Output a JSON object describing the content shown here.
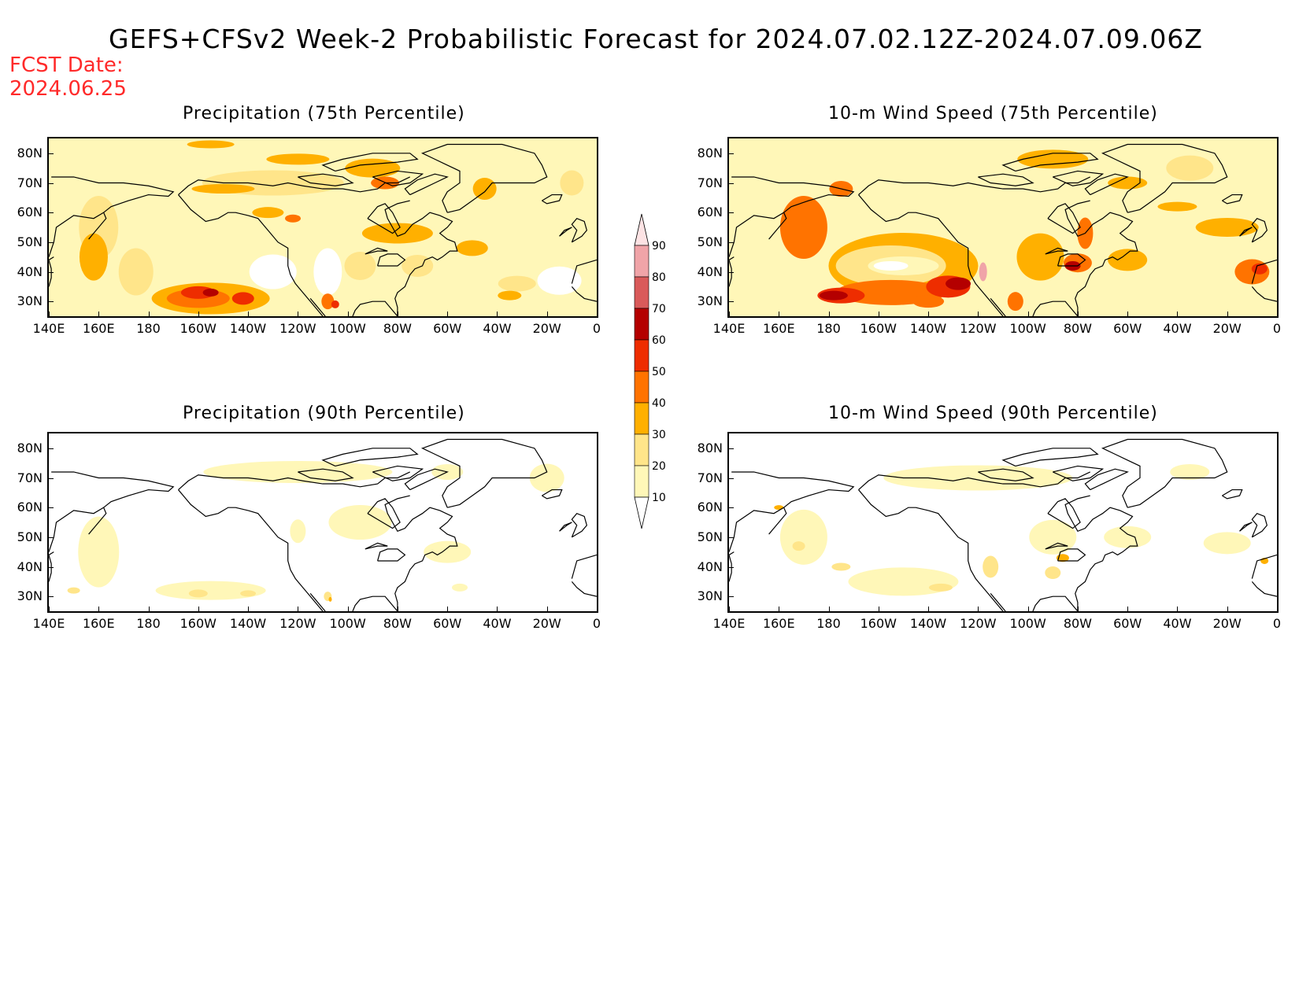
{
  "header": {
    "title": "GEFS+CFSv2 Week-2 Probabilistic Forecast for 2024.07.02.12Z-2024.07.09.06Z",
    "fcst_label": "FCST Date:",
    "fcst_date": "2024.06.25"
  },
  "axes": {
    "lat_labels": [
      "80N",
      "70N",
      "60N",
      "50N",
      "40N",
      "30N"
    ],
    "lat_values": [
      80,
      70,
      60,
      50,
      40,
      30
    ],
    "lat_range": [
      25,
      85
    ],
    "lon_labels": [
      "140E",
      "160E",
      "180",
      "160W",
      "140W",
      "120W",
      "100W",
      "80W",
      "60W",
      "40W",
      "20W",
      "0"
    ],
    "lon_values": [
      140,
      160,
      180,
      200,
      220,
      240,
      260,
      280,
      300,
      320,
      340,
      360
    ],
    "lon_range": [
      140,
      360
    ]
  },
  "colorbar": {
    "levels": [
      "10",
      "20",
      "30",
      "40",
      "50",
      "60",
      "70",
      "80",
      "90"
    ],
    "colors": [
      "#ffffff",
      "#fff7b8",
      "#ffe58a",
      "#ffb000",
      "#ff7300",
      "#ee2d00",
      "#b40000",
      "#d95a5a",
      "#f0a4a8",
      "#fde3e4"
    ]
  },
  "panels": [
    {
      "id": "precip-75",
      "title": "Precipitation (75th Percentile)"
    },
    {
      "id": "wind-75",
      "title": "10-m Wind Speed (75th Percentile)"
    },
    {
      "id": "precip-90",
      "title": "Precipitation (90th Percentile)"
    },
    {
      "id": "wind-90",
      "title": "10-m Wind Speed (90th Percentile)"
    }
  ]
}
